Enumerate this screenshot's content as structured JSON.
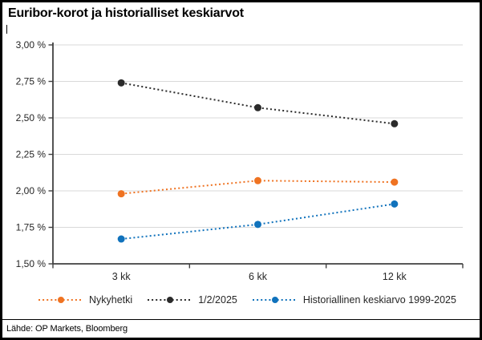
{
  "title": "Euribor-korot ja historialliset keskiarvot",
  "footer": {
    "source": "Lähde: OP Markets, Bloomberg"
  },
  "colors": {
    "series_nykyhetki": "#EF7322",
    "series_feb2025": "#2B2B2B",
    "series_historical": "#1072BC",
    "gridline": "#D9D9D9",
    "axis": "#404040",
    "tick_text": "#262626"
  },
  "chart_data": {
    "type": "line",
    "line_style": "dotted-with-circle-markers",
    "title": "Euribor-korot ja historialliset keskiarvot",
    "categories": [
      "3 kk",
      "6 kk",
      "12 kk"
    ],
    "series": [
      {
        "name": "Nykyhetki",
        "color_key": "series_nykyhetki",
        "values": [
          1.98,
          2.07,
          2.06
        ]
      },
      {
        "name": "1/2/2025",
        "color_key": "series_feb2025",
        "values": [
          2.74,
          2.57,
          2.46
        ]
      },
      {
        "name": "Historiallinen keskiarvo 1999-2025",
        "color_key": "series_historical",
        "values": [
          1.67,
          1.77,
          1.91
        ]
      }
    ],
    "ylim": [
      1.5,
      3.0
    ],
    "yticks": [
      1.5,
      1.75,
      2.0,
      2.25,
      2.5,
      2.75,
      3.0
    ],
    "ytick_labels": [
      "1,50 %",
      "1,75 %",
      "2,00 %",
      "2,25 %",
      "2,50 %",
      "2,75 %",
      "3,00 %"
    ],
    "xlabel": "",
    "ylabel": "",
    "grid": true,
    "legend_position": "bottom"
  }
}
